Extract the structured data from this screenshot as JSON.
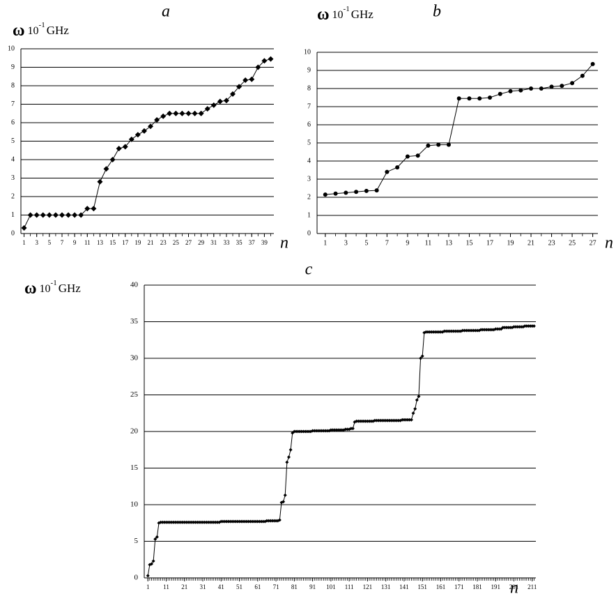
{
  "chart_data": [
    {
      "type": "line",
      "title": "a",
      "x_label": "n",
      "y_label": {
        "symbol": "ω",
        "base": "10",
        "exponent": "-1",
        "unit": "GHz"
      },
      "color": "#000000",
      "marker": "diamond",
      "grid": true,
      "x": [
        1,
        2,
        3,
        4,
        5,
        6,
        7,
        8,
        9,
        10,
        11,
        12,
        13,
        14,
        15,
        16,
        17,
        18,
        19,
        20,
        21,
        22,
        23,
        24,
        25,
        26,
        27,
        28,
        29,
        30,
        31,
        32,
        33,
        34,
        35,
        36,
        37,
        38,
        39,
        40
      ],
      "values": [
        0.3,
        1.0,
        1.0,
        1.0,
        1.0,
        1.0,
        1.0,
        1.0,
        1.0,
        1.0,
        1.35,
        1.35,
        2.8,
        3.5,
        4.0,
        4.6,
        4.7,
        5.1,
        5.35,
        5.55,
        5.8,
        6.15,
        6.35,
        6.5,
        6.5,
        6.5,
        6.5,
        6.5,
        6.5,
        6.75,
        6.95,
        7.15,
        7.2,
        7.55,
        7.95,
        8.3,
        8.35,
        9.0,
        9.35,
        9.45
      ],
      "xlim": [
        0.5,
        40.5
      ],
      "xticks": [
        1,
        3,
        5,
        7,
        9,
        11,
        13,
        15,
        17,
        19,
        21,
        23,
        25,
        27,
        29,
        31,
        33,
        35,
        37,
        39
      ],
      "ylim": [
        0,
        10
      ],
      "yticks": [
        0,
        1,
        2,
        3,
        4,
        5,
        6,
        7,
        8,
        9,
        10
      ]
    },
    {
      "type": "line",
      "title": "b",
      "x_label": "n",
      "y_label": {
        "symbol": "ω",
        "base": "10",
        "exponent": "-1",
        "unit": "GHz"
      },
      "color": "#000000",
      "marker": "circle",
      "grid": true,
      "x": [
        1,
        2,
        3,
        4,
        5,
        6,
        7,
        8,
        9,
        10,
        11,
        12,
        13,
        14,
        15,
        16,
        17,
        18,
        19,
        20,
        21,
        22,
        23,
        24,
        25,
        26,
        27
      ],
      "values": [
        2.15,
        2.2,
        2.25,
        2.3,
        2.35,
        2.38,
        3.4,
        3.65,
        4.25,
        4.3,
        4.85,
        4.9,
        4.9,
        7.45,
        7.45,
        7.45,
        7.5,
        7.7,
        7.85,
        7.9,
        8.0,
        8.0,
        8.1,
        8.15,
        8.3,
        8.7,
        9.35
      ],
      "xlim": [
        0.2,
        27.5
      ],
      "xticks": [
        1,
        3,
        5,
        7,
        9,
        11,
        13,
        15,
        17,
        19,
        21,
        23,
        25,
        27
      ],
      "ylim": [
        0,
        10
      ],
      "yticks": [
        0,
        1,
        2,
        3,
        4,
        5,
        6,
        7,
        8,
        9,
        10
      ]
    },
    {
      "type": "line",
      "title": "c",
      "x_label": "n",
      "y_label": {
        "symbol": "ω",
        "base": "10",
        "exponent": "-1",
        "unit": "GHz"
      },
      "color": "#000000",
      "marker": "diamond",
      "grid": true,
      "x": [
        1,
        2,
        3,
        4,
        5,
        6,
        7,
        8,
        9,
        10,
        11,
        12,
        13,
        14,
        15,
        16,
        17,
        18,
        19,
        20,
        21,
        22,
        23,
        24,
        25,
        26,
        27,
        28,
        29,
        30,
        31,
        32,
        33,
        34,
        35,
        36,
        37,
        38,
        39,
        40,
        41,
        42,
        43,
        44,
        45,
        46,
        47,
        48,
        49,
        50,
        51,
        52,
        53,
        54,
        55,
        56,
        57,
        58,
        59,
        60,
        61,
        62,
        63,
        64,
        65,
        66,
        67,
        68,
        69,
        70,
        71,
        72,
        73,
        74,
        75,
        76,
        77,
        78,
        79,
        80,
        81,
        82,
        83,
        84,
        85,
        86,
        87,
        88,
        89,
        90,
        91,
        92,
        93,
        94,
        95,
        96,
        97,
        98,
        99,
        100,
        101,
        102,
        103,
        104,
        105,
        106,
        107,
        108,
        109,
        110,
        111,
        112,
        113,
        114,
        115,
        116,
        117,
        118,
        119,
        120,
        121,
        122,
        123,
        124,
        125,
        126,
        127,
        128,
        129,
        130,
        131,
        132,
        133,
        134,
        135,
        136,
        137,
        138,
        139,
        140,
        141,
        142,
        143,
        144,
        145,
        146,
        147,
        148,
        149,
        150,
        151,
        152,
        153,
        154,
        155,
        156,
        157,
        158,
        159,
        160,
        161,
        162,
        163,
        164,
        165,
        166,
        167,
        168,
        169,
        170,
        171,
        172,
        173,
        174,
        175,
        176,
        177,
        178,
        179,
        180,
        181,
        182,
        183,
        184,
        185,
        186,
        187,
        188,
        189,
        190,
        191,
        192,
        193,
        194,
        195,
        196,
        197,
        198,
        199,
        200,
        201,
        202,
        203,
        204,
        205,
        206,
        207,
        208,
        209,
        210,
        211,
        212
      ],
      "values": [
        0.3,
        1.8,
        1.9,
        2.3,
        5.3,
        5.6,
        7.5,
        7.6,
        7.6,
        7.6,
        7.6,
        7.6,
        7.6,
        7.6,
        7.6,
        7.6,
        7.6,
        7.6,
        7.6,
        7.6,
        7.6,
        7.6,
        7.6,
        7.6,
        7.6,
        7.6,
        7.6,
        7.6,
        7.6,
        7.6,
        7.6,
        7.6,
        7.6,
        7.6,
        7.6,
        7.6,
        7.6,
        7.6,
        7.6,
        7.6,
        7.7,
        7.7,
        7.7,
        7.7,
        7.7,
        7.7,
        7.7,
        7.7,
        7.7,
        7.7,
        7.7,
        7.7,
        7.7,
        7.7,
        7.7,
        7.7,
        7.7,
        7.7,
        7.7,
        7.7,
        7.7,
        7.7,
        7.7,
        7.7,
        7.7,
        7.8,
        7.8,
        7.8,
        7.8,
        7.8,
        7.8,
        7.8,
        7.9,
        10.3,
        10.4,
        11.3,
        15.8,
        16.5,
        17.5,
        19.8,
        20.0,
        20.0,
        20.0,
        20.0,
        20.0,
        20.0,
        20.0,
        20.0,
        20.0,
        20.0,
        20.1,
        20.1,
        20.1,
        20.1,
        20.1,
        20.1,
        20.1,
        20.1,
        20.1,
        20.1,
        20.2,
        20.2,
        20.2,
        20.2,
        20.2,
        20.2,
        20.2,
        20.2,
        20.3,
        20.3,
        20.3,
        20.4,
        20.4,
        21.3,
        21.4,
        21.4,
        21.4,
        21.4,
        21.4,
        21.4,
        21.4,
        21.4,
        21.4,
        21.4,
        21.5,
        21.5,
        21.5,
        21.5,
        21.5,
        21.5,
        21.5,
        21.5,
        21.5,
        21.5,
        21.5,
        21.5,
        21.5,
        21.5,
        21.5,
        21.6,
        21.6,
        21.6,
        21.6,
        21.6,
        21.6,
        22.5,
        23.1,
        24.3,
        24.8,
        30.0,
        30.3,
        33.5,
        33.6,
        33.6,
        33.6,
        33.6,
        33.6,
        33.6,
        33.6,
        33.6,
        33.6,
        33.6,
        33.7,
        33.7,
        33.7,
        33.7,
        33.7,
        33.7,
        33.7,
        33.7,
        33.7,
        33.7,
        33.8,
        33.8,
        33.8,
        33.8,
        33.8,
        33.8,
        33.8,
        33.8,
        33.8,
        33.8,
        33.9,
        33.9,
        33.9,
        33.9,
        33.9,
        33.9,
        33.9,
        33.9,
        34.0,
        34.0,
        34.0,
        34.0,
        34.2,
        34.2,
        34.2,
        34.2,
        34.2,
        34.2,
        34.3,
        34.3,
        34.3,
        34.3,
        34.3,
        34.3,
        34.4,
        34.4,
        34.4,
        34.4,
        34.4,
        34.4
      ],
      "xlim": [
        -1,
        213
      ],
      "xticks": [
        1,
        11,
        21,
        31,
        41,
        51,
        61,
        71,
        81,
        91,
        101,
        111,
        121,
        131,
        141,
        151,
        161,
        171,
        181,
        191,
        201,
        211
      ],
      "ylim": [
        0,
        40
      ],
      "yticks": [
        0,
        5,
        10,
        15,
        20,
        25,
        30,
        35,
        40
      ]
    }
  ]
}
